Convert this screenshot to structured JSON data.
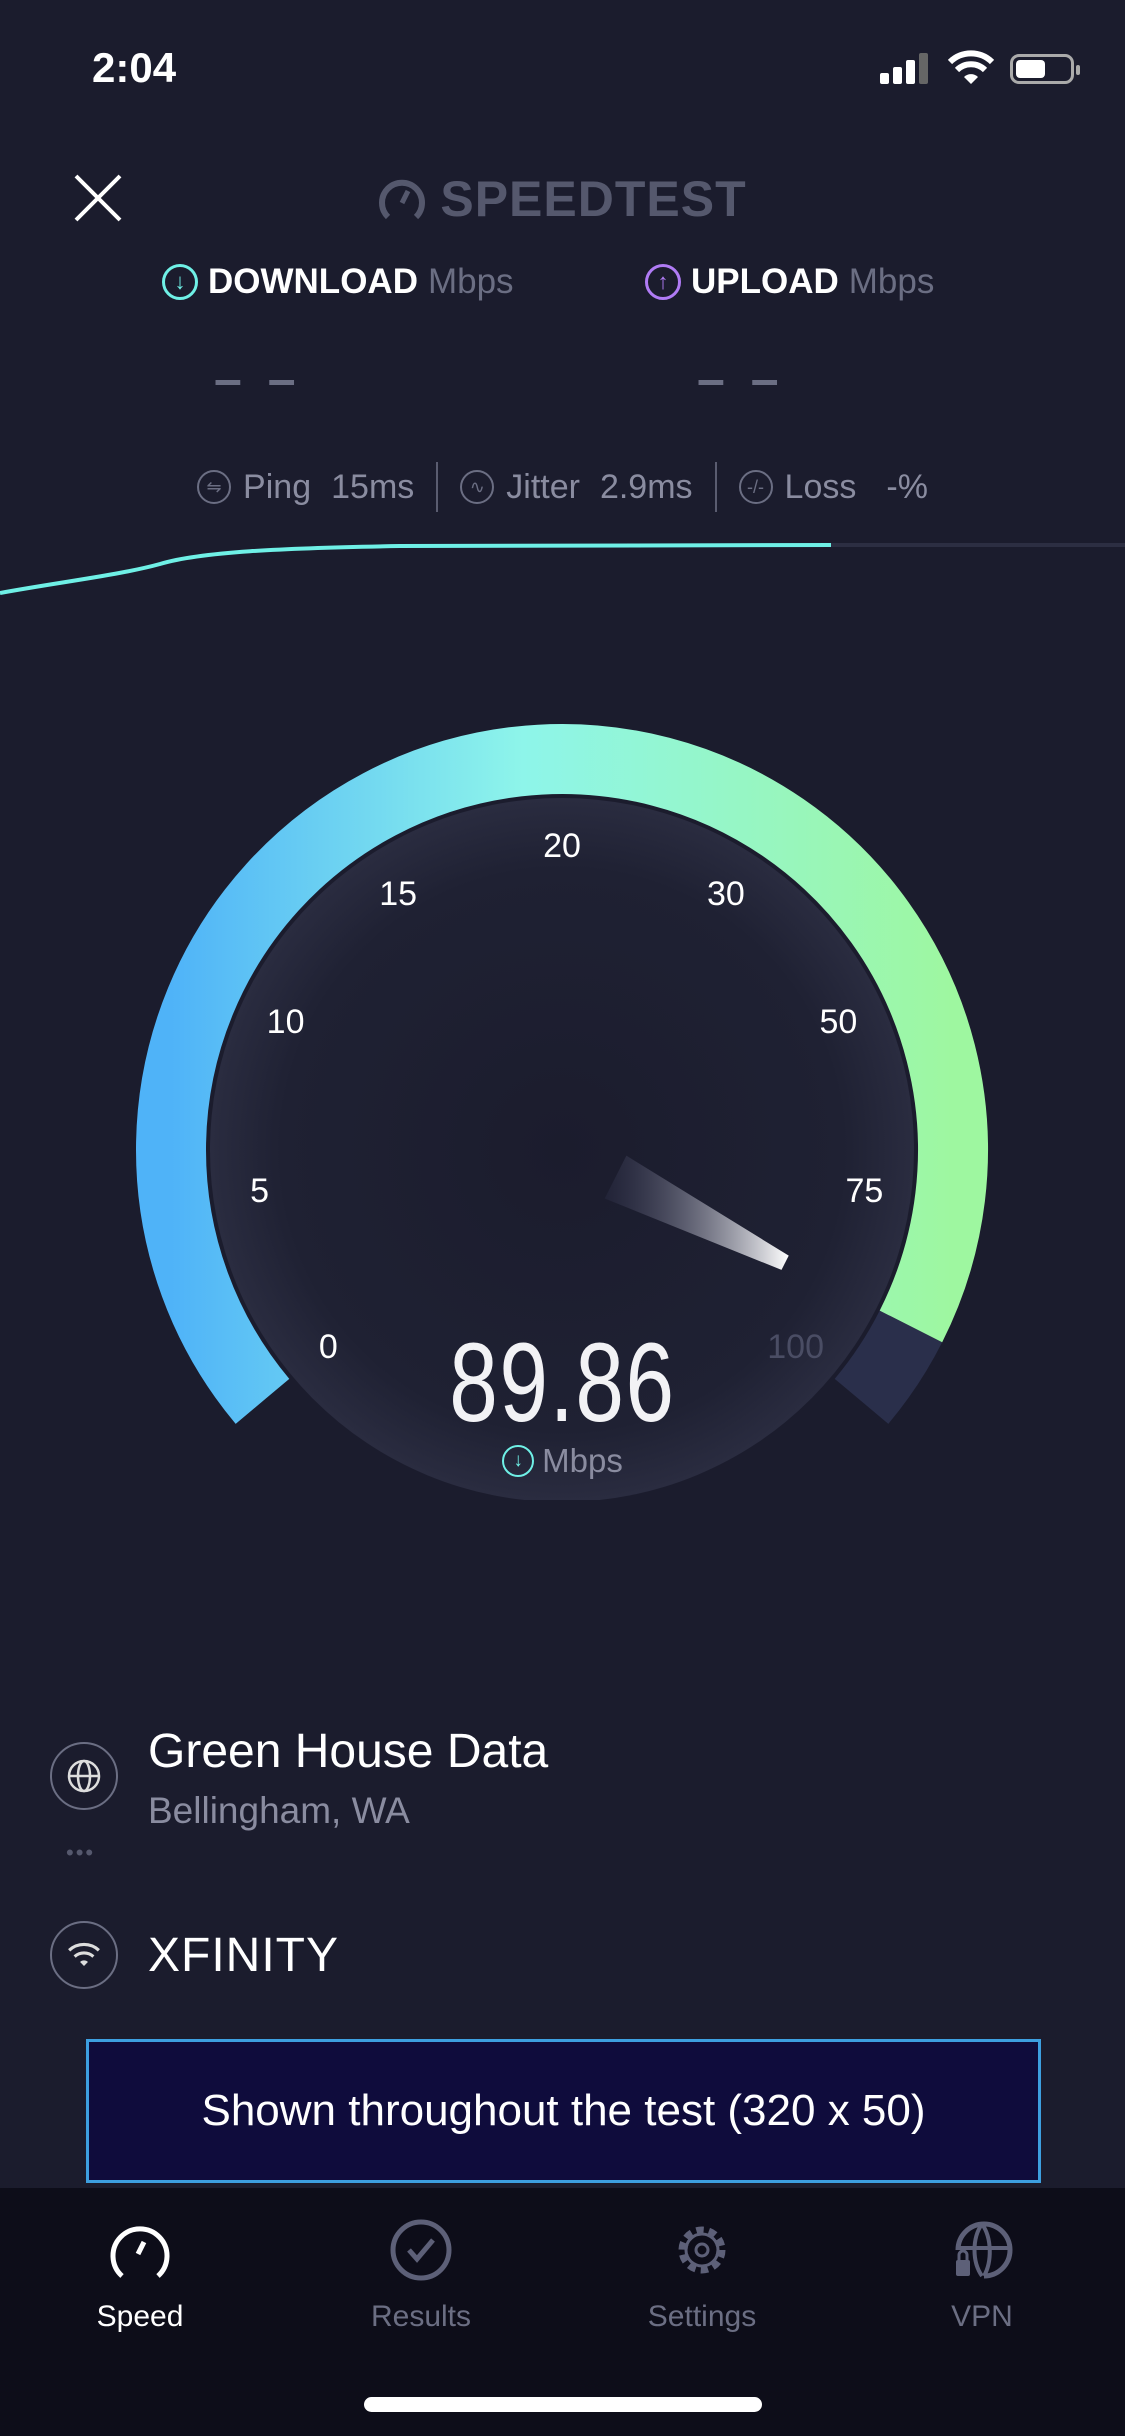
{
  "status_bar": {
    "time": "2:04",
    "icons": [
      "cellular-signal-icon",
      "wifi-icon",
      "battery-icon"
    ]
  },
  "header": {
    "logo_text": "SPEEDTEST",
    "close_icon": "close-icon"
  },
  "download": {
    "label": "DOWNLOAD",
    "unit": "Mbps",
    "value": "– –",
    "color": "#6ff0e6"
  },
  "upload": {
    "label": "UPLOAD",
    "unit": "Mbps",
    "value": "– –",
    "color": "#b07bf5"
  },
  "stats": {
    "ping": {
      "label": "Ping",
      "value": "15",
      "unit": "ms"
    },
    "jitter": {
      "label": "Jitter",
      "value": "2.9",
      "unit": "ms"
    },
    "loss": {
      "label": "Loss",
      "value": "-",
      "unit": "%"
    }
  },
  "gauge": {
    "ticks": [
      "0",
      "5",
      "10",
      "15",
      "20",
      "30",
      "50",
      "75",
      "100"
    ],
    "current_value": "89.86",
    "current_numeric": 89.86,
    "unit": "Mbps",
    "colors": {
      "start": "#4fb3f8",
      "mid": "#8ef5ea",
      "end": "#9ef7a0",
      "remaining": "#2a2f4b"
    }
  },
  "server": {
    "name": "Green House Data",
    "location": "Bellingham, WA"
  },
  "isp": {
    "name": "XFINITY"
  },
  "ad": {
    "text": "Shown throughout the test (320 x 50)"
  },
  "tabs": [
    {
      "label": "Speed",
      "icon": "speedometer-icon",
      "active": true
    },
    {
      "label": "Results",
      "icon": "checkmark-circle-icon",
      "active": false
    },
    {
      "label": "Settings",
      "icon": "gear-icon",
      "active": false
    },
    {
      "label": "VPN",
      "icon": "globe-lock-icon",
      "active": false
    }
  ]
}
